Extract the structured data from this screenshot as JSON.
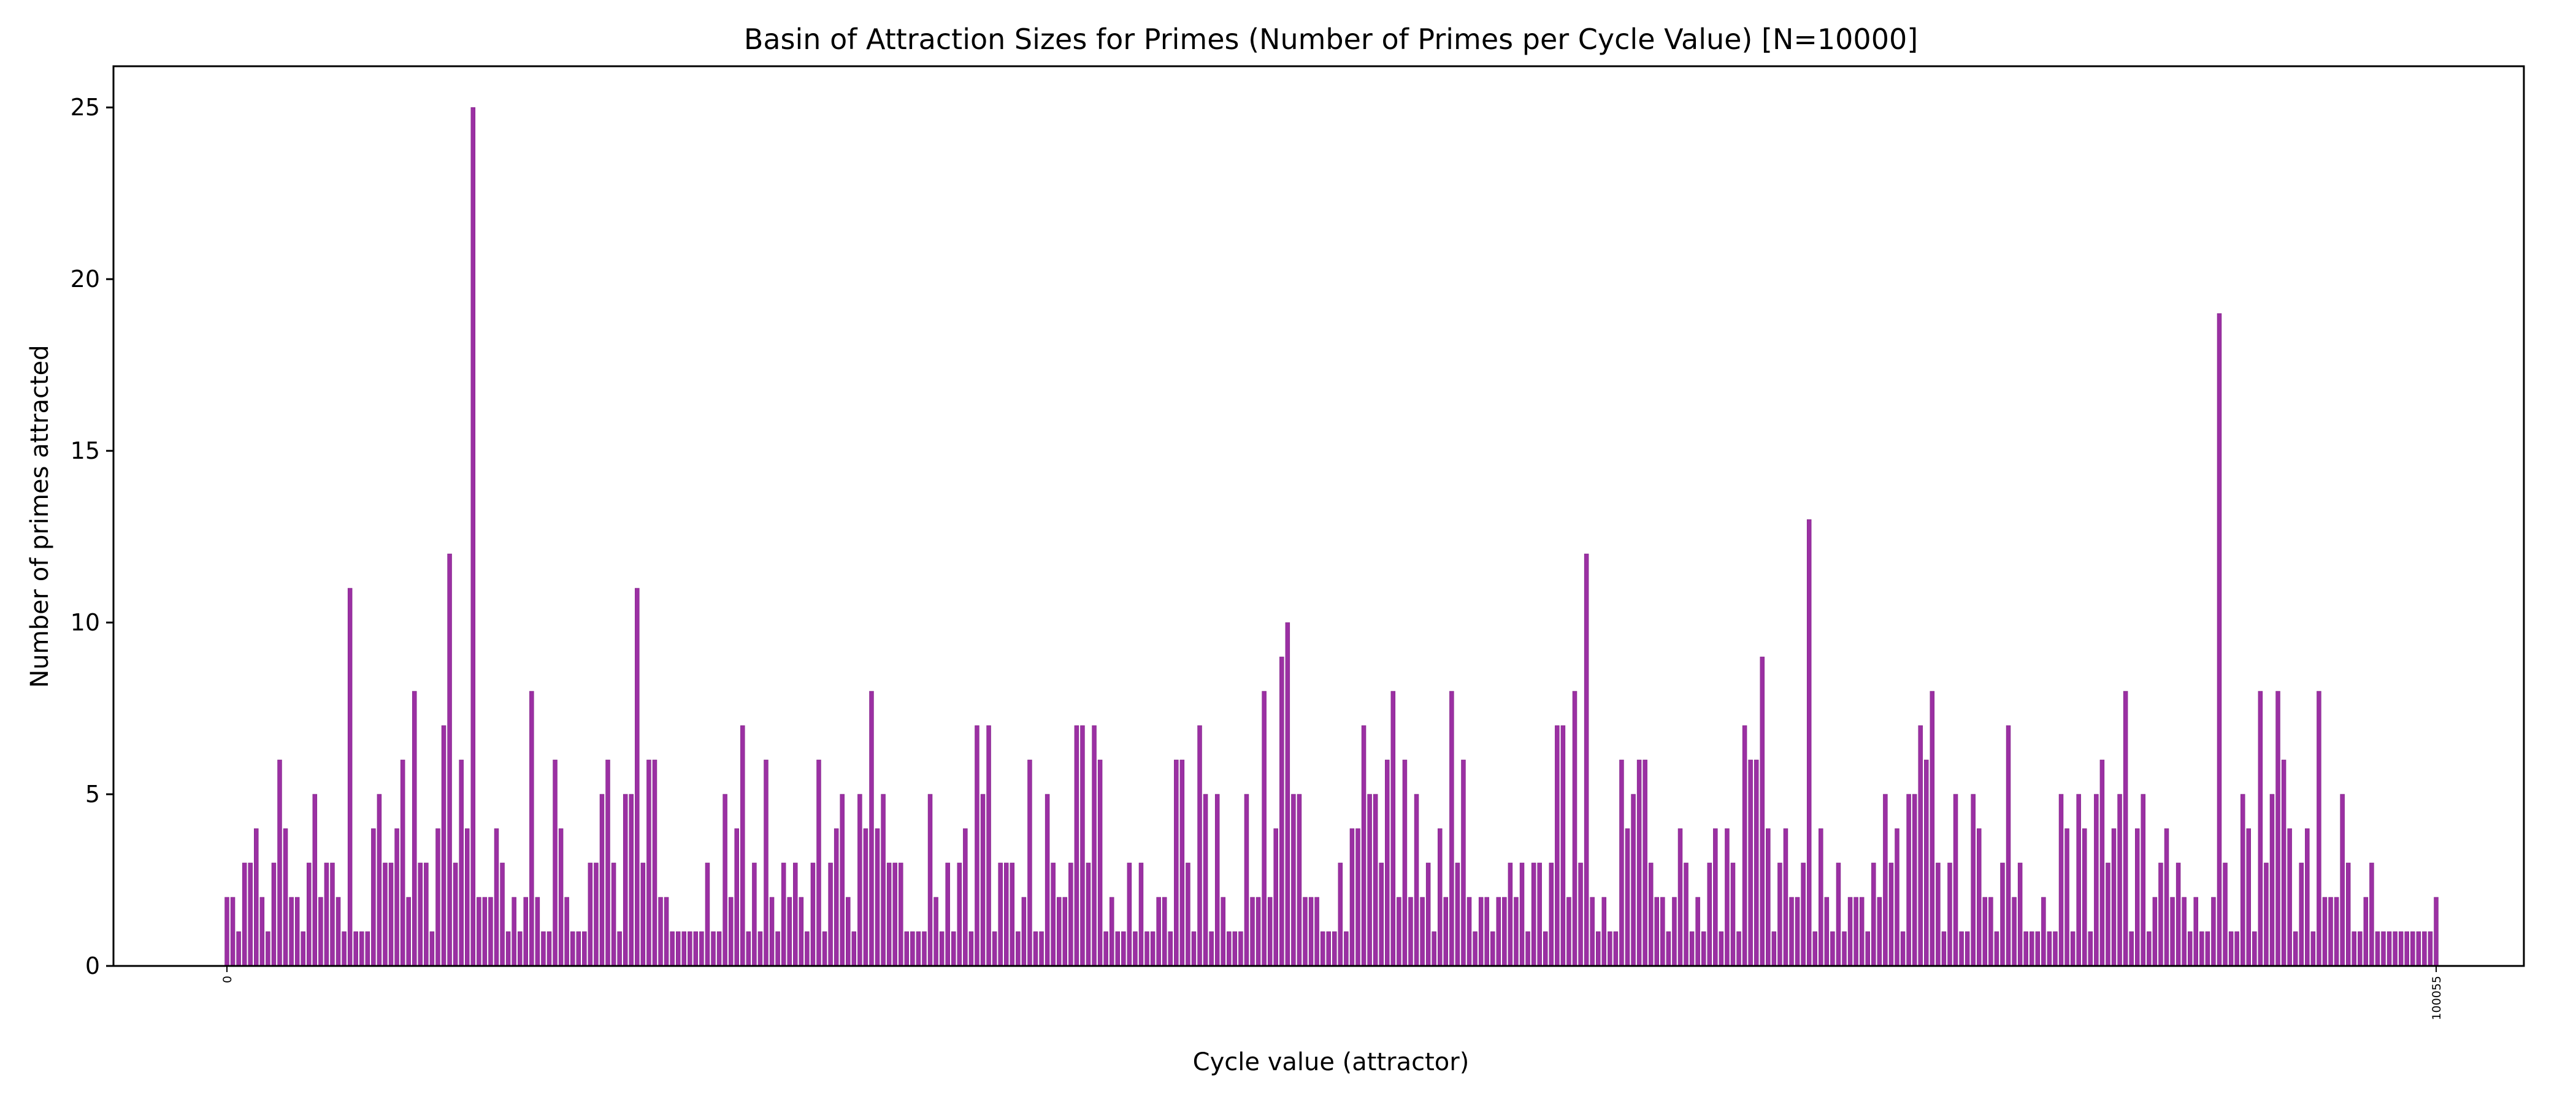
{
  "chart_data": {
    "type": "bar",
    "title": "Basin of Attraction Sizes for Primes (Number of Primes per Cycle Value) [N=10000]",
    "xlabel": "Cycle value (attractor)",
    "ylabel": "Number of primes attracted",
    "ylim": [
      0,
      26.2
    ],
    "yticks": [
      0,
      5,
      10,
      15,
      20,
      25
    ],
    "grid": false,
    "bar_color": "#9b30a3",
    "bar_edge_color": "#7d2084",
    "first_category": "0",
    "last_category": "100055",
    "values": [
      2,
      2,
      1,
      3,
      3,
      4,
      2,
      1,
      3,
      6,
      4,
      2,
      2,
      1,
      3,
      5,
      2,
      3,
      3,
      2,
      1,
      11,
      1,
      1,
      1,
      4,
      5,
      3,
      3,
      4,
      6,
      2,
      8,
      3,
      3,
      1,
      4,
      7,
      12,
      3,
      6,
      4,
      25,
      2,
      2,
      2,
      4,
      3,
      1,
      2,
      1,
      2,
      8,
      2,
      1,
      1,
      6,
      4,
      2,
      1,
      1,
      1,
      3,
      3,
      5,
      6,
      3,
      1,
      5,
      5,
      11,
      3,
      6,
      6,
      2,
      2,
      1,
      1,
      1,
      1,
      1,
      1,
      3,
      1,
      1,
      5,
      2,
      4,
      7,
      1,
      3,
      1,
      6,
      2,
      1,
      3,
      2,
      3,
      2,
      1,
      3,
      6,
      1,
      3,
      4,
      5,
      2,
      1,
      5,
      4,
      8,
      4,
      5,
      3,
      3,
      3,
      1,
      1,
      1,
      1,
      5,
      2,
      1,
      3,
      1,
      3,
      4,
      1,
      7,
      5,
      7,
      1,
      3,
      3,
      3,
      1,
      2,
      6,
      1,
      1,
      5,
      3,
      2,
      2,
      3,
      7,
      7,
      3,
      7,
      6,
      1,
      2,
      1,
      1,
      3,
      1,
      3,
      1,
      1,
      2,
      2,
      1,
      6,
      6,
      3,
      1,
      7,
      5,
      1,
      5,
      2,
      1,
      1,
      1,
      5,
      2,
      2,
      8,
      2,
      4,
      9,
      10,
      5,
      5,
      2,
      2,
      2,
      1,
      1,
      1,
      3,
      1,
      4,
      4,
      7,
      5,
      5,
      3,
      6,
      8,
      2,
      6,
      2,
      5,
      2,
      3,
      1,
      4,
      2,
      8,
      3,
      6,
      2,
      1,
      2,
      2,
      1,
      2,
      2,
      3,
      2,
      3,
      1,
      3,
      3,
      1,
      3,
      7,
      7,
      2,
      8,
      3,
      12,
      2,
      1,
      2,
      1,
      1,
      6,
      4,
      5,
      6,
      6,
      3,
      2,
      2,
      1,
      2,
      4,
      3,
      1,
      2,
      1,
      3,
      4,
      1,
      4,
      3,
      1,
      7,
      6,
      6,
      9,
      4,
      1,
      3,
      4,
      2,
      2,
      3,
      13,
      1,
      4,
      2,
      1,
      3,
      1,
      2,
      2,
      2,
      1,
      3,
      2,
      5,
      3,
      4,
      1,
      5,
      5,
      7,
      6,
      8,
      3,
      1,
      3,
      5,
      1,
      1,
      5,
      4,
      2,
      2,
      1,
      3,
      7,
      2,
      3,
      1,
      1,
      1,
      2,
      1,
      1,
      5,
      4,
      1,
      5,
      4,
      1,
      5,
      6,
      3,
      4,
      5,
      8,
      1,
      4,
      5,
      1,
      2,
      3,
      4,
      2,
      3,
      2,
      1,
      2,
      1,
      1,
      2,
      19,
      3,
      1,
      1,
      5,
      4,
      1,
      8,
      3,
      5,
      8,
      6,
      4,
      1,
      3,
      4,
      1,
      8,
      2,
      2,
      2,
      5,
      3,
      1,
      1,
      2,
      3,
      1,
      1,
      1,
      1,
      1,
      1,
      1,
      1,
      1,
      1,
      2
    ]
  }
}
